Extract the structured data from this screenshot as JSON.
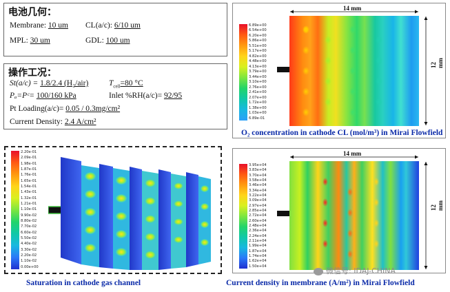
{
  "geometry": {
    "title": "电池几何：",
    "membrane_label": "Membrane:",
    "membrane_value": "10 um",
    "cl_label": "CL(a/c):",
    "cl_value": "6/10 um",
    "mpl_label": "MPL:",
    "mpl_value": "30 um",
    "gdl_label": "GDL:",
    "gdl_value": "100 um"
  },
  "operating": {
    "title": "操作工况：",
    "st_label": "St(a/c) = ",
    "st_value": "1.8/2.4 (H₂/air)",
    "tcell_label": "T",
    "tcell_sub": "cell",
    "tcell_value": "=80 °C",
    "pressure_label": "Pₐ=Pᶜ= ",
    "pressure_value": "100/160 kPa",
    "rh_label": "Inlet %RH(a/c)= ",
    "rh_value": "92/95",
    "pt_label": "Pt Loading(a/c)= ",
    "pt_value": "0.05 / 0.3mg/cm²",
    "cd_label": "Current Density: ",
    "cd_value": "2.4 A/cm²"
  },
  "o2_plot": {
    "width_label": "14 mm",
    "height_label": "12 mm",
    "caption": "O₂ concentration in cathode CL (mol/m³) in Mirai Flowfield",
    "legend": [
      "6.89e+00",
      "6.54e+00",
      "6.20e+00",
      "5.86e+00",
      "5.51e+00",
      "5.17e+00",
      "4.82e+00",
      "4.48e+00",
      "4.13e+00",
      "3.79e+00",
      "3.44e+00",
      "3.10e+00",
      "2.76e+00",
      "2.41e+00",
      "2.07e+00",
      "1.72e+00",
      "1.38e+00",
      "1.03e+00",
      "6.89e-01"
    ]
  },
  "saturation_plot": {
    "caption": "Saturation in cathode gas channel",
    "legend": [
      "2.20e-01",
      "2.09e-01",
      "1.98e-01",
      "1.87e-01",
      "1.76e-01",
      "1.65e-01",
      "1.54e-01",
      "1.43e-01",
      "1.32e-01",
      "1.21e-01",
      "1.10e-01",
      "9.90e-02",
      "8.80e-02",
      "7.70e-02",
      "6.60e-02",
      "5.50e-02",
      "4.40e-02",
      "3.30e-02",
      "2.20e-02",
      "1.10e-02",
      "0.00e+00"
    ]
  },
  "current_plot": {
    "width_label": "14 mm",
    "height_label": "12 mm",
    "caption": "Current density in membrane (A/m²) in Mirai Flowfield",
    "legend": [
      "3.95e+04",
      "3.83e+04",
      "3.70e+04",
      "3.58e+04",
      "3.46e+04",
      "3.34e+04",
      "3.22e+04",
      "3.09e+04",
      "2.97e+04",
      "2.85e+04",
      "2.72e+04",
      "2.60e+04",
      "2.48e+04",
      "2.36e+04",
      "2.24e+04",
      "2.11e+04",
      "1.99e+04",
      "1.87e+04",
      "1.74e+04",
      "1.62e+04",
      "1.50e+04"
    ]
  },
  "watermark": {
    "text": "微信号: IDAJ-CHINA"
  }
}
